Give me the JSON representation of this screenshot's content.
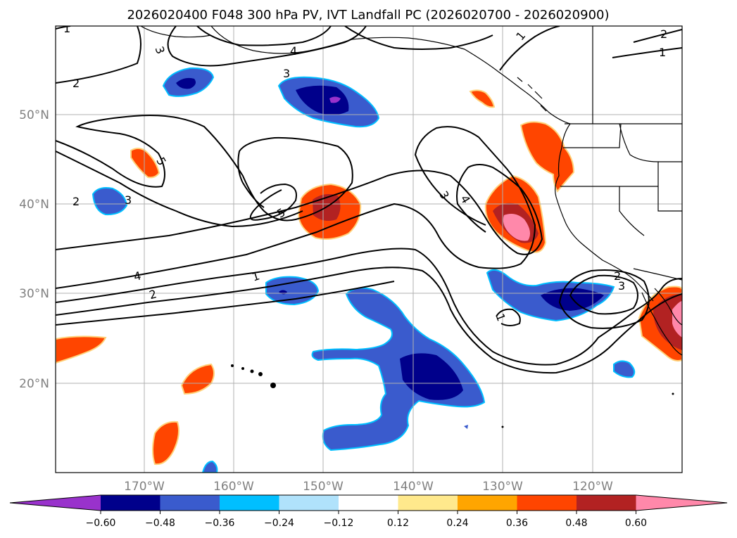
{
  "title": "2026020400 F048 300 hPa PV, IVT Landfall PC (2026020700 - 2026020900)",
  "lat_labels": [
    "50°N",
    "40°N",
    "30°N",
    "20°N"
  ],
  "lon_labels": [
    "170°W",
    "160°W",
    "150°W",
    "140°W",
    "130°W",
    "120°W"
  ],
  "colorbar": {
    "ticks": [
      "−0.60",
      "−0.48",
      "−0.36",
      "−0.24",
      "−0.12",
      "0.12",
      "0.24",
      "0.36",
      "0.48",
      "0.60"
    ],
    "colors": [
      "#9932cc",
      "#00008b",
      "#3a5bcd",
      "#00bfff",
      "#b0e2fb",
      "#ffffff",
      "#ffe98c",
      "#ffa500",
      "#ff4500",
      "#b22222",
      "#ff88aa"
    ]
  },
  "contour_labels": [
    "1",
    "1",
    "1",
    "1",
    "1",
    "2",
    "2",
    "2",
    "2",
    "2",
    "3",
    "3",
    "3",
    "3",
    "3",
    "4",
    "4",
    "4",
    "5",
    "5"
  ],
  "chart_data": {
    "type": "map",
    "extent": {
      "lon_min": -180,
      "lon_max": -110,
      "lat_min": 10,
      "lat_max": 60
    },
    "contour_field": "300 hPa PV (PVU)",
    "contour_levels": [
      1,
      2,
      3,
      4,
      5
    ],
    "shaded_field": "IVT Landfall PC",
    "shaded_levels": [
      -0.6,
      -0.48,
      -0.36,
      -0.24,
      -0.12,
      0.12,
      0.24,
      0.36,
      0.48,
      0.6
    ]
  }
}
